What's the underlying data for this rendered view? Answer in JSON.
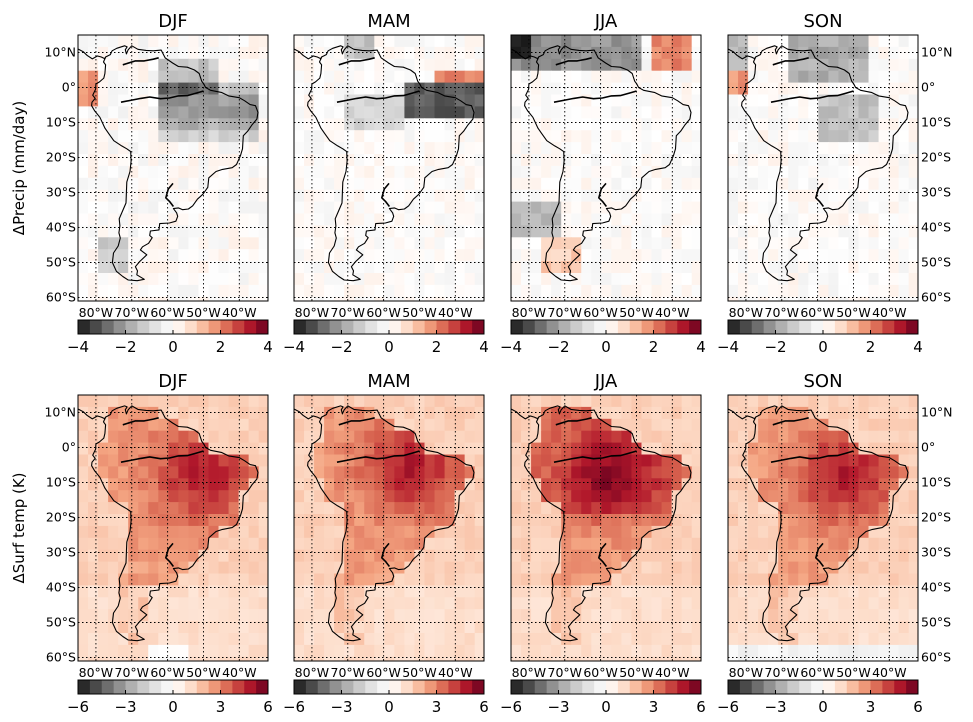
{
  "figure": {
    "panel_titles": [
      "DJF",
      "MAM",
      "JJA",
      "SON"
    ],
    "row_labels": [
      "ΔPrecip (mm/day)",
      "ΔSurf temp (K)"
    ],
    "lat_tick_labels": [
      "10°N",
      "0°",
      "10°S",
      "20°S",
      "30°S",
      "40°S",
      "50°S",
      "60°S"
    ],
    "lon_tick_labels": [
      "80°W",
      "70°W",
      "60°W",
      "50°W",
      "40°W"
    ],
    "lat_values": [
      10,
      0,
      -10,
      -20,
      -30,
      -40,
      -50,
      -60
    ],
    "lon_values": [
      -80,
      -70,
      -60,
      -50,
      -40
    ],
    "map_extent": {
      "lon": [
        -85,
        -32
      ],
      "lat": [
        -61,
        15
      ]
    },
    "rows": [
      {
        "variable": "precip",
        "colorbar_ticks": [
          "−4",
          "−2",
          "0",
          "2",
          "4"
        ],
        "range": [
          -4,
          4
        ]
      },
      {
        "variable": "temp",
        "colorbar_ticks": [
          "−6",
          "−3",
          "0",
          "3",
          "6"
        ],
        "range": [
          -6,
          6
        ]
      }
    ],
    "colormap": {
      "negative": [
        "#1a1a1a",
        "#4d4d4d",
        "#878787",
        "#bababa",
        "#e0e0e0",
        "#ffffff"
      ],
      "positive": [
        "#ffffff",
        "#fddbc7",
        "#f4a582",
        "#d6604d",
        "#b2182b",
        "#67001f"
      ]
    }
  }
}
